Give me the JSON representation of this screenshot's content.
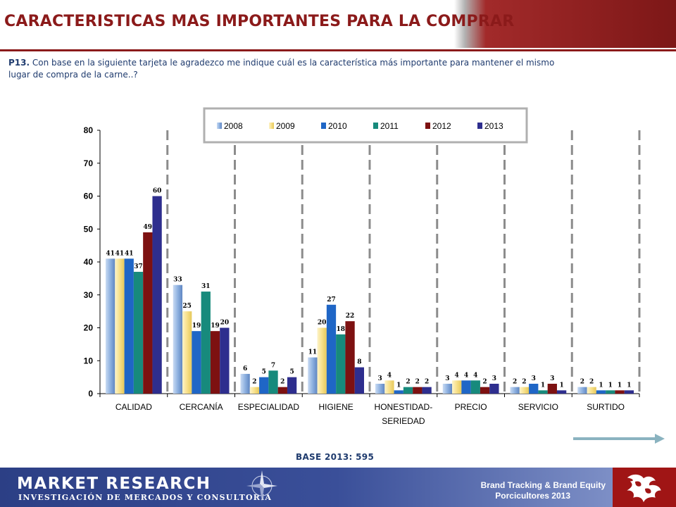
{
  "header": {
    "title": "CARACTERISTICAS MAS IMPORTANTES PARA LA COMPRAR",
    "question_code": "P13.",
    "question_text": "Con base en la siguiente tarjeta le agradezco me indique cuál es la característica más importante para mantener el mismo lugar de compra de la carne..?"
  },
  "base": {
    "label": "BASE 2013:",
    "value": "595"
  },
  "footer": {
    "brand_line1": "MARKET RESEARCH",
    "brand_line2": "INVESTIGACIÓN DE MERCADOS Y CONSULTORÍA",
    "study_line1": "Brand Tracking & Brand Equity",
    "study_line2": "Porcicultores 2013"
  },
  "colors": {
    "title": "#8b1a1a",
    "footer_blue": "#2c3f85",
    "footer_red": "#a01515"
  },
  "chart_data": {
    "type": "bar",
    "categories": [
      "CALIDAD",
      "CERCANÍA",
      "ESPECIALIDAD",
      "HIGIENE",
      "HONESTIDAD-SERIEDAD",
      "PRECIO",
      "SERVICIO",
      "SURTIDO"
    ],
    "category_lines": [
      [
        "CALIDAD"
      ],
      [
        "CERCANÍA"
      ],
      [
        "ESPECIALIDAD"
      ],
      [
        "HIGIENE"
      ],
      [
        "HONESTIDAD-",
        "SERIEDAD"
      ],
      [
        "PRECIO"
      ],
      [
        "SERVICIO"
      ],
      [
        "SURTIDO"
      ]
    ],
    "series": [
      {
        "name": "2008",
        "color": "#8eb1e0",
        "values": [
          41,
          33,
          6,
          11,
          3,
          3,
          2,
          2
        ],
        "labels": [
          "41",
          "33",
          "6",
          "11",
          "3",
          "3",
          "2",
          "2"
        ]
      },
      {
        "name": "2009",
        "color": "#f7e08a",
        "values": [
          41,
          25,
          2,
          20,
          4,
          4,
          2,
          2
        ],
        "labels": [
          "41",
          "25",
          "2",
          "20",
          "4",
          "4",
          "2",
          "2"
        ]
      },
      {
        "name": "2010",
        "color": "#1f66c6",
        "values": [
          41,
          19,
          5,
          27,
          1,
          4,
          3,
          1
        ],
        "labels": [
          "41",
          "19",
          "5",
          "27",
          "1",
          "4",
          "3",
          "1"
        ]
      },
      {
        "name": "2011",
        "color": "#178a7c",
        "values": [
          37,
          31,
          7,
          18,
          2,
          4,
          1,
          1
        ],
        "labels": [
          "37",
          "31",
          "7",
          "18",
          "2",
          "4",
          "1",
          "1"
        ]
      },
      {
        "name": "2012",
        "color": "#7d1111",
        "values": [
          49,
          19,
          2,
          22,
          2,
          2,
          3,
          1
        ],
        "labels": [
          "49",
          "19",
          "2",
          "22",
          "2",
          "2",
          "3",
          "1"
        ]
      },
      {
        "name": "2013",
        "color": "#2e2e8e",
        "values": [
          60,
          20,
          5,
          8,
          2,
          3,
          1,
          1
        ],
        "labels": [
          "60",
          "20",
          "5",
          "8",
          "2",
          "3",
          "1",
          "1"
        ]
      }
    ],
    "yticks": [
      "0",
      "10",
      "20",
      "30",
      "40",
      "50",
      "60",
      "70",
      "80"
    ],
    "ylim": [
      0,
      80
    ],
    "grid": false,
    "legend_position": "top-center"
  }
}
